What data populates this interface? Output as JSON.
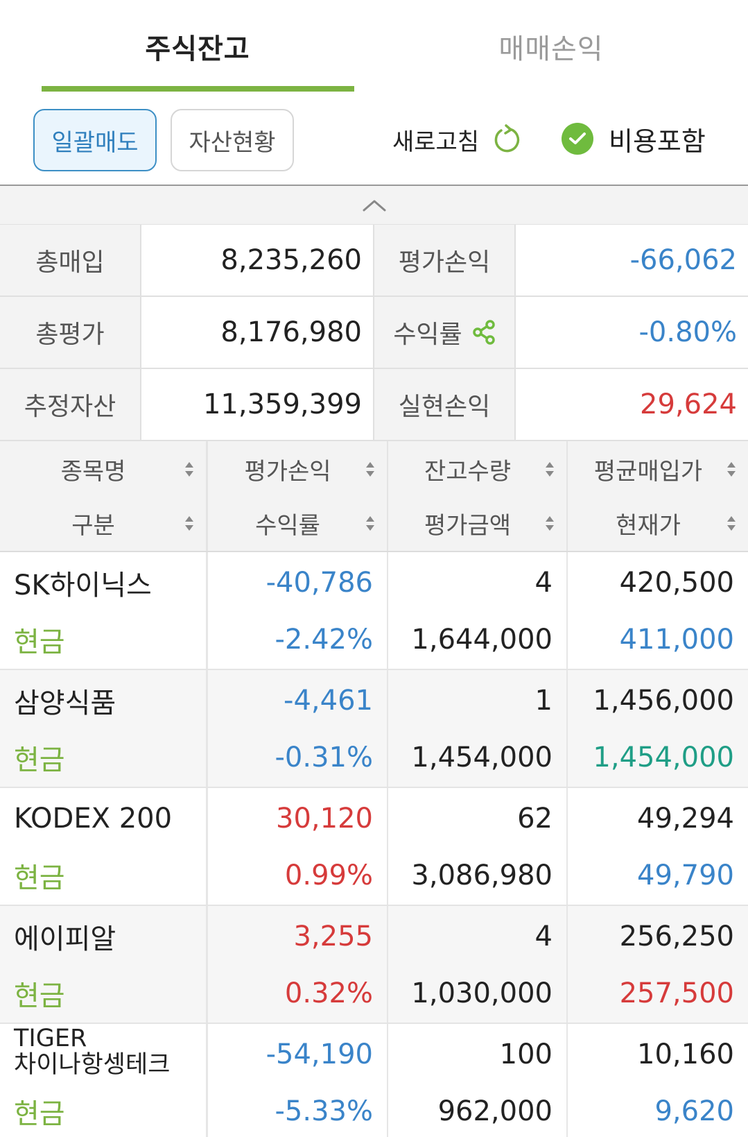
{
  "tabs": [
    {
      "label": "주식잔고",
      "active": true
    },
    {
      "label": "매매손익",
      "active": false
    }
  ],
  "toolbar": {
    "sell_all_label": "일괄매도",
    "assets_label": "자산현황",
    "refresh_label": "새로고침",
    "refresh_icon": "refresh-icon",
    "fee_label": "비용포함",
    "fee_checked": true
  },
  "colors": {
    "accent_green": "#7cb342",
    "loss_blue": "#3a84c9",
    "gain_red": "#d63b3b",
    "flat_teal": "#1f9e86"
  },
  "summary": {
    "total_purchase_label": "총매입",
    "total_purchase": "8,235,260",
    "eval_pl_label": "평가손익",
    "eval_pl": "-66,062",
    "total_eval_label": "총평가",
    "total_eval": "8,176,980",
    "return_label": "수익률",
    "return_rate": "-0.80%",
    "est_assets_label": "추정자산",
    "est_assets": "11,359,399",
    "realized_pl_label": "실현손익",
    "realized_pl": "29,624"
  },
  "holdings_header": {
    "col1_top": "종목명",
    "col1_bottom": "구분",
    "col2_top": "평가손익",
    "col2_bottom": "수익률",
    "col3_top": "잔고수량",
    "col3_bottom": "평가금액",
    "col4_top": "평균매입가",
    "col4_bottom": "현재가"
  },
  "holdings": [
    {
      "name": "SK하이닉스",
      "type": "현금",
      "pl": "-40,786",
      "rate": "-2.42%",
      "qty": "4",
      "eval": "1,644,000",
      "avg_price": "420,500",
      "cur_price": "411,000"
    },
    {
      "name": "삼양식품",
      "type": "현금",
      "pl": "-4,461",
      "rate": "-0.31%",
      "qty": "1",
      "eval": "1,454,000",
      "avg_price": "1,456,000",
      "cur_price": "1,454,000"
    },
    {
      "name": "KODEX 200",
      "type": "현금",
      "pl": "30,120",
      "rate": "0.99%",
      "qty": "62",
      "eval": "3,086,980",
      "avg_price": "49,294",
      "cur_price": "49,790"
    },
    {
      "name": "에이피알",
      "type": "현금",
      "pl": "3,255",
      "rate": "0.32%",
      "qty": "4",
      "eval": "1,030,000",
      "avg_price": "256,250",
      "cur_price": "257,500"
    },
    {
      "name": "TIGER\n차이나항셍테크",
      "type": "현금",
      "pl": "-54,190",
      "rate": "-5.33%",
      "qty": "100",
      "eval": "962,000",
      "avg_price": "10,160",
      "cur_price": "9,620"
    }
  ]
}
